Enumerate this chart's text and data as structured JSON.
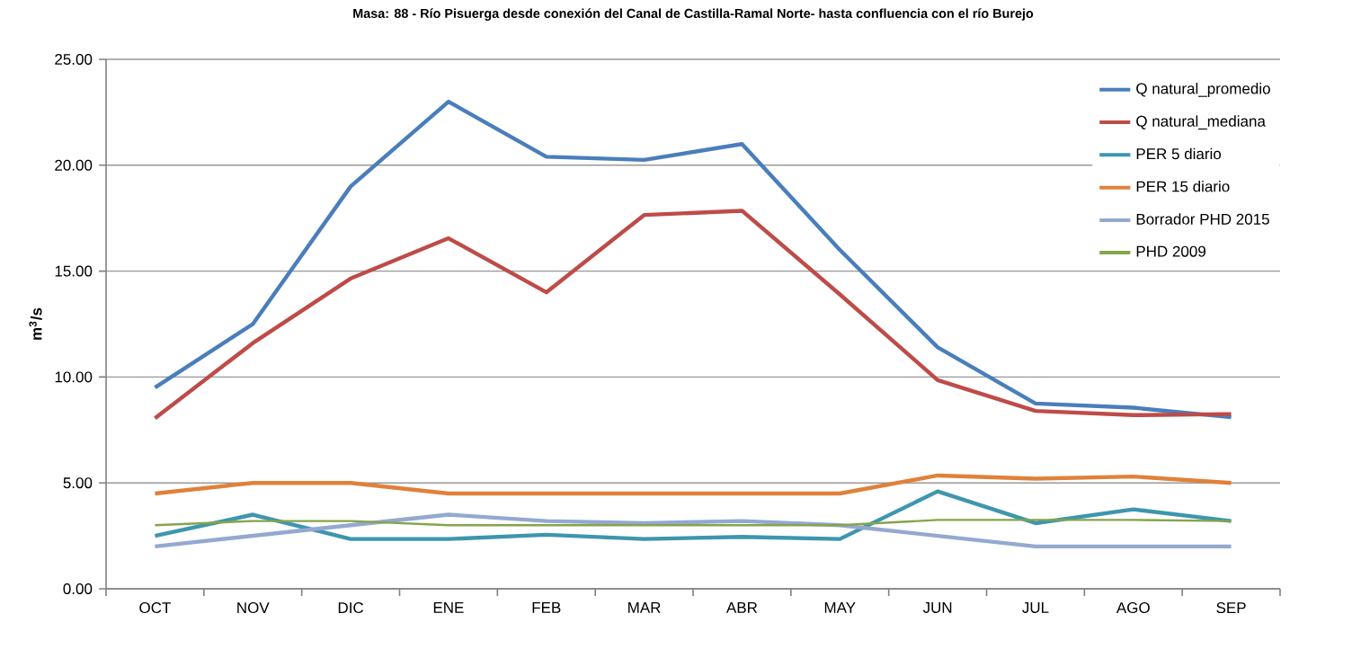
{
  "chart_data": {
    "type": "line",
    "title": "Masa: 88 - Río Pisuerga desde conexión del Canal de Castilla-Ramal Norte- hasta confluencia con el río Burejo",
    "ylabel": "m$^{3}$/s",
    "categories": [
      "OCT",
      "NOV",
      "DIC",
      "ENE",
      "FEB",
      "MAR",
      "ABR",
      "MAY",
      "JUN",
      "JUL",
      "AGO",
      "SEP"
    ],
    "series": [
      {
        "name": "Q natural_promedio",
        "color": "#4a7ebb",
        "values": [
          9.5,
          12.5,
          19.0,
          23.0,
          20.4,
          20.25,
          21.0,
          16.0,
          11.4,
          8.75,
          8.55,
          8.1
        ]
      },
      {
        "name": "Q natural_mediana",
        "color": "#be4b48",
        "values": [
          8.05,
          11.6,
          14.65,
          16.55,
          14.0,
          17.65,
          17.85,
          13.9,
          9.85,
          8.4,
          8.2,
          8.25
        ]
      },
      {
        "name": "PER 5 diario",
        "color": "#3d96ae",
        "values": [
          2.5,
          3.5,
          2.35,
          2.35,
          2.55,
          2.35,
          2.45,
          2.35,
          4.6,
          3.1,
          3.75,
          3.2
        ]
      },
      {
        "name": "PER 15 diario",
        "color": "#e0813a",
        "values": [
          4.5,
          5.0,
          5.0,
          4.5,
          4.5,
          4.5,
          4.5,
          4.5,
          5.35,
          5.2,
          5.3,
          5.0
        ]
      },
      {
        "name": "Borrador PHD 2015",
        "color": "#93a9cf",
        "values": [
          2.0,
          2.5,
          3.0,
          3.5,
          3.2,
          3.1,
          3.2,
          3.0,
          2.5,
          2.0,
          2.0,
          2.0
        ]
      },
      {
        "name": "PHD 2009",
        "color": "#86a44a",
        "values": [
          3.0,
          3.2,
          3.2,
          3.0,
          3.0,
          3.0,
          3.0,
          3.0,
          3.25,
          3.25,
          3.25,
          3.2
        ]
      }
    ],
    "ylim": [
      0,
      25
    ],
    "yticks": [
      {
        "value": 0,
        "label": "0.00"
      },
      {
        "value": 5,
        "label": "5.00"
      },
      {
        "value": 10,
        "label": "10.00"
      },
      {
        "value": 15,
        "label": "15.00"
      },
      {
        "value": 20,
        "label": "20.00"
      },
      {
        "value": 25,
        "label": "25.00"
      }
    ],
    "grid": "y",
    "legend": "top right",
    "marker": "none",
    "line_style": "solid"
  }
}
